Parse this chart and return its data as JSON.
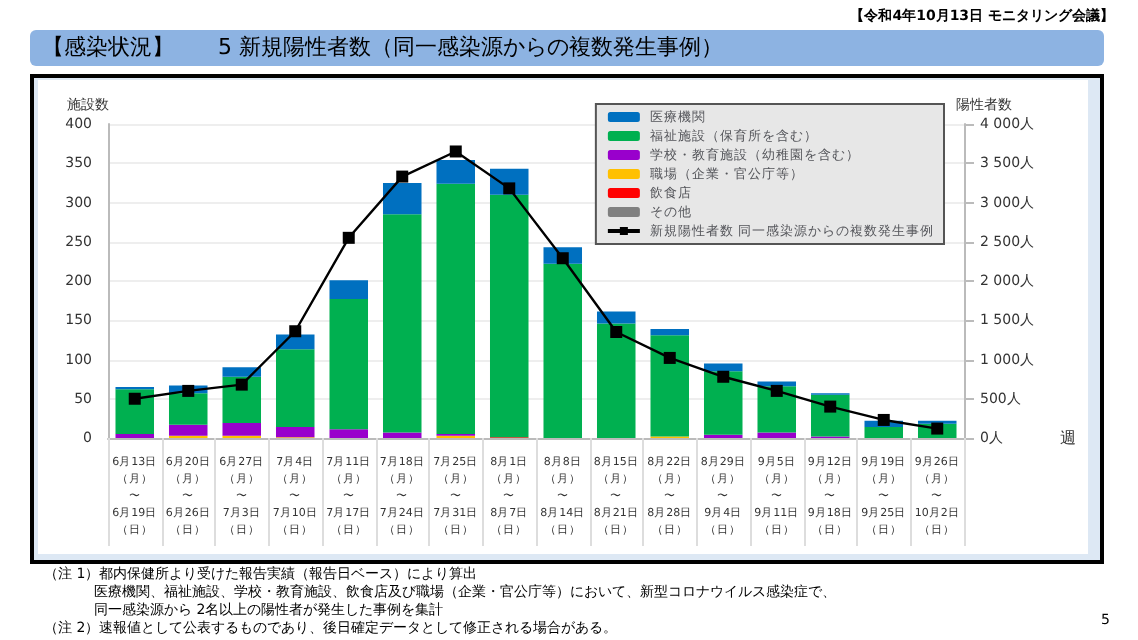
{
  "chart_data": {
    "type": "bar",
    "title": "【感染状況】　　5 新規陽性者数（同一感染源からの複数発生事例）",
    "subtitle": "【令和4年10月13日 モニタリング会議】",
    "xlabel": "週",
    "ylabel": "施設数",
    "y2label": "陽性者数",
    "categories": [
      "6月13日（月）〜6月19日（日）",
      "6月20日（月）〜6月26日（日）",
      "6月27日（月）〜7月3日（日）",
      "7月4日（月）〜7月10日（日）",
      "7月11日（月）〜7月17日（日）",
      "7月18日（月）〜7月24日（日）",
      "7月25日（月）〜7月31日（日）",
      "8月1日（月）〜8月7日（日）",
      "8月8日（月）〜8月14日（日）",
      "8月15日（月）〜8月21日（日）",
      "8月22日（月）〜8月28日（日）",
      "8月29日（月）〜9月4日（日）",
      "9月5日（月）〜9月11日（日）",
      "9月12日（月）〜9月18日（日）",
      "9月19日（月）〜9月25日（日）",
      "9月26日（月）〜10月2日（日）"
    ],
    "stacked": true,
    "series": [
      {
        "name": "その他",
        "color": "#808080",
        "values": [
          0,
          0,
          0,
          0,
          0,
          0,
          0,
          0,
          0,
          0,
          0,
          0,
          0,
          0,
          0,
          0
        ]
      },
      {
        "name": "飲食店",
        "color": "#ff0000",
        "values": [
          0,
          0,
          0,
          0,
          0,
          0,
          0,
          1,
          0,
          0,
          0,
          0,
          0,
          0,
          0,
          0
        ]
      },
      {
        "name": "職場（企業・官公庁等）",
        "color": "#ffc000",
        "values": [
          0,
          3,
          3,
          1,
          0,
          0,
          3,
          0,
          0,
          0,
          2,
          0,
          0,
          0,
          0,
          0
        ]
      },
      {
        "name": "学校・教育施設（幼稚園を含む）",
        "color": "#9900cc",
        "values": [
          5,
          14,
          16,
          13,
          11,
          7,
          2,
          0,
          0,
          0,
          0,
          4,
          7,
          2,
          0,
          0
        ]
      },
      {
        "name": "福祉施設（保育所を含む）",
        "color": "#00b050",
        "values": [
          57,
          40,
          59,
          99,
          166,
          278,
          319,
          309,
          222,
          146,
          129,
          81,
          59,
          53,
          14,
          18
        ]
      },
      {
        "name": "医療機関",
        "color": "#0070c0",
        "values": [
          3,
          10,
          12,
          19,
          24,
          40,
          30,
          33,
          21,
          15,
          8,
          10,
          6,
          2,
          8,
          4
        ]
      },
      {
        "name": "新規陽性者数 同一感染源からの複数発生事例",
        "type": "line",
        "axis": "y2",
        "color": "#000000",
        "values": [
          500,
          600,
          680,
          1360,
          2550,
          3330,
          3650,
          3180,
          2290,
          1350,
          1020,
          780,
          600,
          400,
          230,
          120
        ]
      }
    ],
    "ylim": [
      0,
      400
    ],
    "yticks": [
      0,
      50,
      100,
      150,
      200,
      250,
      300,
      350,
      400
    ],
    "y2lim": [
      0,
      4000
    ],
    "y2ticks": [
      {
        "value": 0,
        "label": "0人"
      },
      {
        "value": 500,
        "label": "500人"
      },
      {
        "value": 1000,
        "label": "1 000人"
      },
      {
        "value": 1500,
        "label": "1 500人"
      },
      {
        "value": 2000,
        "label": "2 000人"
      },
      {
        "value": 2500,
        "label": "2 500人"
      },
      {
        "value": 3000,
        "label": "3 000人"
      },
      {
        "value": 3500,
        "label": "3 500人"
      },
      {
        "value": 4000,
        "label": "4 000人"
      }
    ],
    "grid": "y",
    "legend": "top right",
    "marker": "square",
    "annotations": [
      "（注 1）都内保健所より受けた報告実績（報告日ベース）により算出",
      "医療機関、福祉施設、学校・教育施設、飲食店及び職場（企業・官公庁等）において、新型コロナウイルス感染症で、",
      "同一感染源から 2名以上の陽性者が発生した事例を集計",
      "（注 2）速報値として公表するものであり、後日確定データとして修正される場合がある。",
      "5"
    ]
  }
}
